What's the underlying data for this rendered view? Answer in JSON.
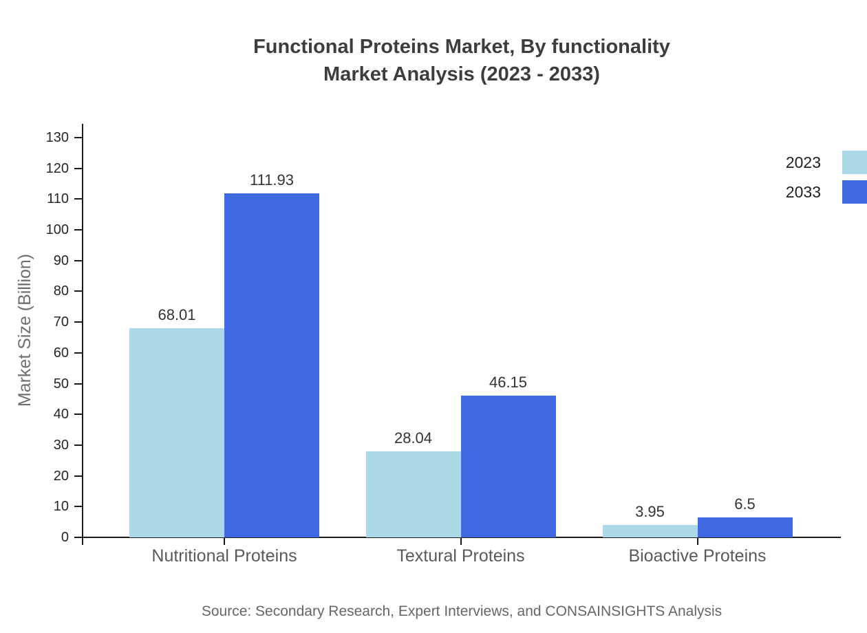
{
  "title": {
    "line1": "Functional Proteins Market, By functionality",
    "line2": "Market Analysis (2023 - 2033)"
  },
  "source": "Source: Secondary Research, Expert Interviews, and CONSAINSIGHTS Analysis",
  "chart_data": {
    "type": "bar",
    "title": "Functional Proteins Market, By functionality Market Analysis (2023 - 2033)",
    "categories": [
      "Nutritional Proteins",
      "Textural Proteins",
      "Bioactive Proteins"
    ],
    "series": [
      {
        "name": "2023",
        "color": "#ADD8E6",
        "values": [
          68.01,
          28.04,
          3.95
        ]
      },
      {
        "name": "2033",
        "color": "#4169E1",
        "values": [
          111.93,
          46.15,
          6.5
        ]
      }
    ],
    "xlabel": "",
    "ylabel": "Market Size (Billion)",
    "ylim": [
      0,
      130
    ],
    "ytick_step": 10,
    "grid": false,
    "legend_position": "right",
    "value_labels": true
  }
}
